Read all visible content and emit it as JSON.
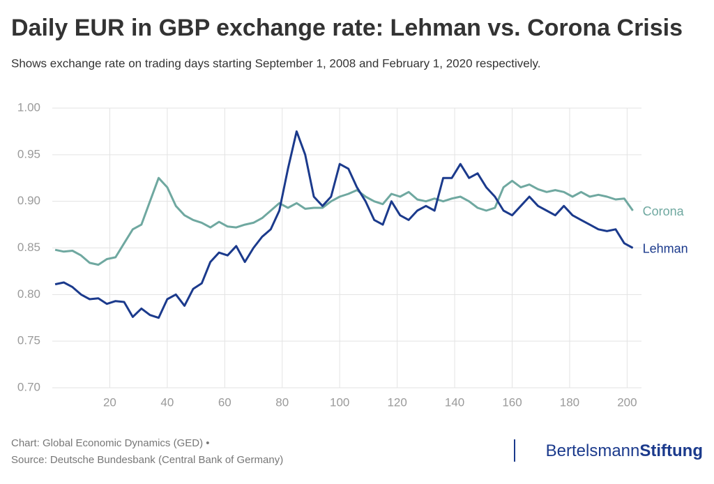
{
  "chart_data": {
    "type": "line",
    "title": "Daily EUR in GBP exchange rate: Lehman vs. Corona Crisis",
    "subtitle": "Shows exchange rate on trading days starting September 1, 2008 and February 1, 2020 respectively.",
    "x": [
      1,
      4,
      7,
      10,
      13,
      16,
      19,
      22,
      25,
      28,
      31,
      34,
      37,
      40,
      43,
      46,
      49,
      52,
      55,
      58,
      61,
      64,
      67,
      70,
      73,
      76,
      79,
      82,
      85,
      88,
      91,
      94,
      97,
      100,
      103,
      106,
      109,
      112,
      115,
      118,
      121,
      124,
      127,
      130,
      133,
      136,
      139,
      142,
      145,
      148,
      151,
      154,
      157,
      160,
      163,
      166,
      169,
      172,
      175,
      178,
      181,
      184,
      187,
      190,
      193,
      196,
      199,
      202
    ],
    "series": [
      {
        "name": "Corona",
        "color": "#6fa8a0",
        "values": [
          0.848,
          0.846,
          0.847,
          0.842,
          0.834,
          0.832,
          0.838,
          0.84,
          0.855,
          0.87,
          0.875,
          0.9,
          0.925,
          0.915,
          0.895,
          0.885,
          0.88,
          0.877,
          0.872,
          0.878,
          0.873,
          0.872,
          0.875,
          0.877,
          0.882,
          0.89,
          0.898,
          0.893,
          0.898,
          0.892,
          0.893,
          0.893,
          0.9,
          0.905,
          0.908,
          0.912,
          0.905,
          0.9,
          0.897,
          0.908,
          0.905,
          0.91,
          0.902,
          0.9,
          0.903,
          0.9,
          0.903,
          0.905,
          0.9,
          0.893,
          0.89,
          0.893,
          0.915,
          0.922,
          0.915,
          0.918,
          0.913,
          0.91,
          0.912,
          0.91,
          0.905,
          0.91,
          0.905,
          0.907,
          0.905,
          0.902,
          0.903,
          0.89
        ]
      },
      {
        "name": "Lehman",
        "color": "#1b3a8c",
        "values": [
          0.811,
          0.813,
          0.808,
          0.8,
          0.795,
          0.796,
          0.79,
          0.793,
          0.792,
          0.776,
          0.785,
          0.778,
          0.775,
          0.795,
          0.8,
          0.788,
          0.806,
          0.812,
          0.835,
          0.845,
          0.842,
          0.852,
          0.835,
          0.85,
          0.862,
          0.87,
          0.89,
          0.935,
          0.975,
          0.95,
          0.905,
          0.895,
          0.905,
          0.94,
          0.935,
          0.915,
          0.9,
          0.88,
          0.875,
          0.9,
          0.885,
          0.88,
          0.89,
          0.895,
          0.89,
          0.925,
          0.925,
          0.94,
          0.925,
          0.93,
          0.915,
          0.905,
          0.89,
          0.885,
          0.895,
          0.905,
          0.895,
          0.89,
          0.885,
          0.895,
          0.885,
          0.88,
          0.875,
          0.87,
          0.868,
          0.87,
          0.855,
          0.85
        ]
      }
    ],
    "xlim": [
      0,
      205
    ],
    "xticks": [
      20,
      40,
      60,
      80,
      100,
      120,
      140,
      160,
      180,
      200
    ],
    "ylim": [
      0.7,
      1.0
    ],
    "yticks": [
      {
        "value": 0.7,
        "label": "0.70"
      },
      {
        "value": 0.75,
        "label": "0.75"
      },
      {
        "value": 0.8,
        "label": "0.80"
      },
      {
        "value": 0.85,
        "label": "0.85"
      },
      {
        "value": 0.9,
        "label": "0.90"
      },
      {
        "value": 0.95,
        "label": "0.95"
      },
      {
        "value": 1.0,
        "label": "1.00"
      }
    ],
    "grid": true,
    "source": [
      "Chart: Global Economic Dynamics (GED) •",
      "Source: Deutsche Bundesbank (Central Bank of Germany)"
    ],
    "logo": [
      "Bertelsmann",
      "Stiftung"
    ]
  }
}
